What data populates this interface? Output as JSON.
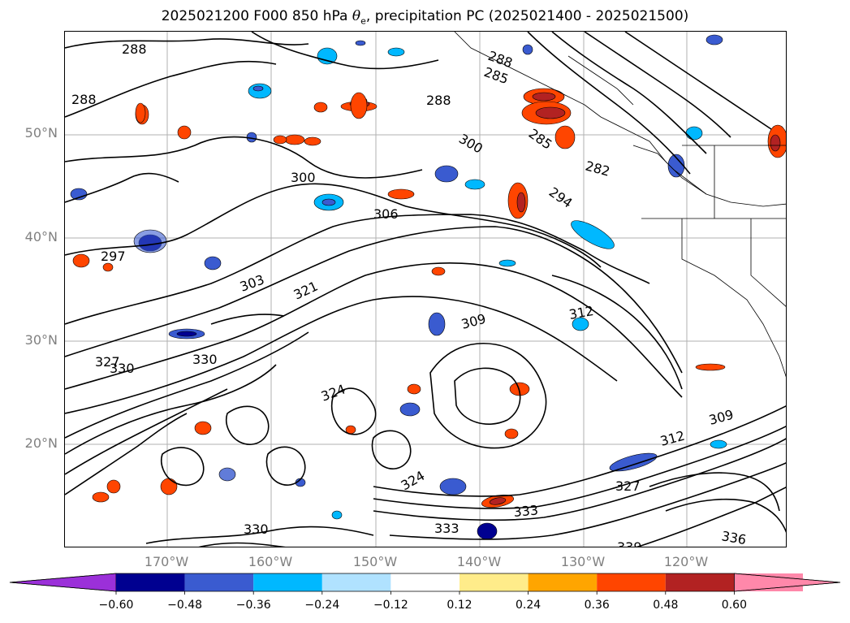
{
  "title": {
    "prefix": "2025021200 F000 850 hPa ",
    "symbol": "θ",
    "subscript": "e",
    "suffix": ", precipitation PC (2025021400 - 2025021500)"
  },
  "map": {
    "lat_labels": [
      "50°N",
      "40°N",
      "30°N",
      "20°N"
    ],
    "lon_labels": [
      "170°W",
      "160°W",
      "150°W",
      "140°W",
      "130°W",
      "120°W"
    ],
    "contour_labels": [
      "288",
      "288",
      "288",
      "285",
      "288",
      "285",
      "300",
      "306",
      "300",
      "297",
      "303",
      "321",
      "309",
      "312",
      "330",
      "327",
      "330",
      "333",
      "333",
      "336",
      "339",
      "282",
      "309",
      "312",
      "324",
      "324",
      "330",
      "327",
      "294"
    ]
  },
  "colorbar": {
    "ticks": [
      "−0.60",
      "−0.48",
      "−0.36",
      "−0.24",
      "−0.12",
      "0.12",
      "0.24",
      "0.36",
      "0.48",
      "0.60"
    ],
    "colors": {
      "under": "#9b30d9",
      "bins": [
        "#000090",
        "#3a5bd0",
        "#00b8ff",
        "#b0e2ff",
        "#ffffff",
        "#ffec8a",
        "#ffa500",
        "#ff4500",
        "#b22222",
        "#ff88aa"
      ],
      "over": "#ff88aa"
    }
  }
}
